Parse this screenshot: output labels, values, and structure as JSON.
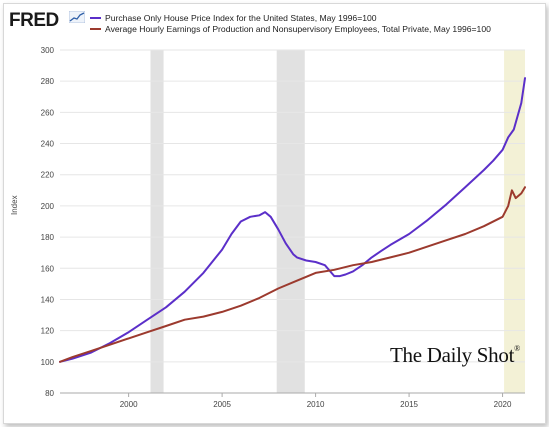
{
  "header": {
    "logo_text": "FRED",
    "logo_icon": "line-graph-icon"
  },
  "watermark": {
    "text": "The Daily Shot",
    "mark": "®"
  },
  "chart_data": {
    "type": "line",
    "title": "",
    "xlabel": "",
    "ylabel": "Index",
    "xlim": [
      1996.33,
      2021.2
    ],
    "ylim": [
      80,
      300
    ],
    "xticks": [
      2000,
      2005,
      2010,
      2015,
      2020
    ],
    "yticks": [
      80,
      100,
      120,
      140,
      160,
      180,
      200,
      220,
      240,
      260,
      280,
      300
    ],
    "grid": "horizontal",
    "legend_position": "top",
    "recessions": [
      {
        "start": 2001.17,
        "end": 2001.87,
        "color": "#e1e1e1"
      },
      {
        "start": 2007.92,
        "end": 2009.42,
        "color": "#e1e1e1"
      },
      {
        "start": 2020.08,
        "end": 2021.2,
        "color": "#f3f1d6"
      }
    ],
    "series": [
      {
        "name": "Purchase Only House Price Index for the United States, May 1996=100",
        "color": "#5b2fc9",
        "x": [
          1996.33,
          1997,
          1998,
          1999,
          2000,
          2001,
          2002,
          2003,
          2004,
          2005,
          2005.5,
          2006,
          2006.5,
          2007,
          2007.3,
          2007.6,
          2008,
          2008.4,
          2008.8,
          2009,
          2009.5,
          2010,
          2010.5,
          2011,
          2011.3,
          2011.6,
          2012,
          2012.5,
          2013,
          2013.5,
          2014,
          2015,
          2016,
          2017,
          2018,
          2019,
          2019.5,
          2020,
          2020.3,
          2020.6,
          2021,
          2021.2
        ],
        "y": [
          100,
          102,
          106,
          112,
          119,
          127,
          135,
          145,
          157,
          172,
          182,
          190,
          193,
          194,
          196,
          193,
          185,
          176,
          169,
          167,
          165,
          164,
          162,
          155,
          155,
          156,
          158,
          162,
          167,
          171,
          175,
          182,
          191,
          201,
          212,
          223,
          229,
          236,
          244,
          249,
          266,
          282
        ]
      },
      {
        "name": "Average Hourly Earnings of Production and Nonsupervisory Employees, Total Private, May 1996=100",
        "color": "#9c3a2e",
        "x": [
          1996.33,
          1997,
          1998,
          1999,
          2000,
          2001,
          2002,
          2003,
          2004,
          2005,
          2006,
          2007,
          2008,
          2009,
          2010,
          2011,
          2012,
          2013,
          2014,
          2015,
          2016,
          2017,
          2018,
          2019,
          2020,
          2020.3,
          2020.5,
          2020.7,
          2021,
          2021.2
        ],
        "y": [
          100,
          103,
          107,
          111,
          115,
          119,
          123,
          127,
          129,
          132,
          136,
          141,
          147,
          152,
          157,
          159,
          162,
          164,
          167,
          170,
          174,
          178,
          182,
          187,
          193,
          200,
          210,
          205,
          208,
          212
        ]
      }
    ]
  }
}
